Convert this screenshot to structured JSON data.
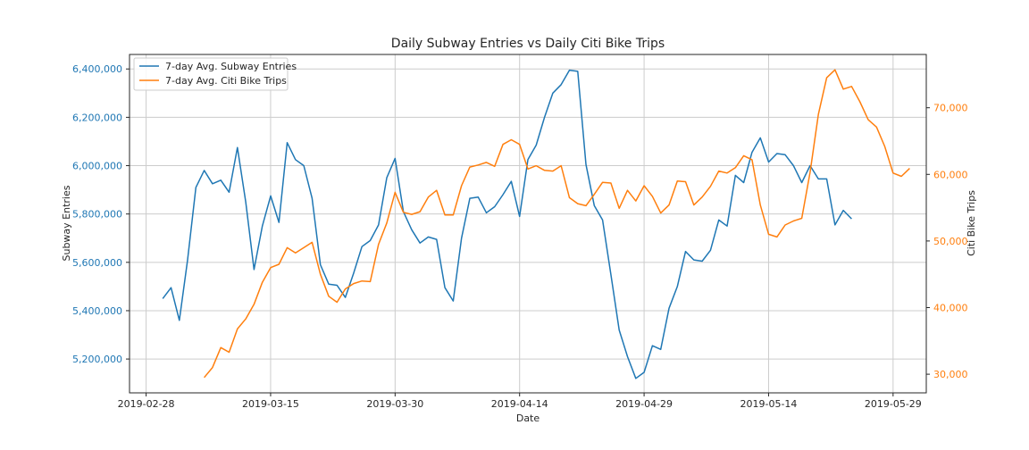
{
  "chart_data": {
    "type": "line",
    "title": "Daily Subway Entries vs Daily Citi Bike Trips",
    "xlabel": "Date",
    "ylabel_left": "Subway Entries",
    "ylabel_right": "Citi Bike Trips",
    "grid": true,
    "legend_position": "top-left",
    "x_start_date": "2019-02-28",
    "x_range_days": [
      -2,
      94
    ],
    "x_ticks": [
      {
        "day": 0,
        "label": "2019-02-28"
      },
      {
        "day": 15,
        "label": "2019-03-15"
      },
      {
        "day": 30,
        "label": "2019-03-30"
      },
      {
        "day": 45,
        "label": "2019-04-14"
      },
      {
        "day": 60,
        "label": "2019-04-29"
      },
      {
        "day": 75,
        "label": "2019-05-14"
      },
      {
        "day": 90,
        "label": "2019-05-29"
      }
    ],
    "y_left": {
      "range": [
        5060000,
        6460000
      ],
      "ticks": [
        {
          "value": 5200000,
          "label": "5,200,000"
        },
        {
          "value": 5400000,
          "label": "5,400,000"
        },
        {
          "value": 5600000,
          "label": "5,600,000"
        },
        {
          "value": 5800000,
          "label": "5,800,000"
        },
        {
          "value": 6000000,
          "label": "6,000,000"
        },
        {
          "value": 6200000,
          "label": "6,200,000"
        },
        {
          "value": 6400000,
          "label": "6,400,000"
        }
      ]
    },
    "y_right": {
      "range": [
        27200,
        78000
      ],
      "ticks": [
        {
          "value": 30000,
          "label": "30,000"
        },
        {
          "value": 40000,
          "label": "40,000"
        },
        {
          "value": 50000,
          "label": "50,000"
        },
        {
          "value": 60000,
          "label": "60,000"
        },
        {
          "value": 70000,
          "label": "70,000"
        }
      ]
    },
    "series": [
      {
        "name": "7-day Avg. Subway Entries",
        "axis": "left",
        "color": "#1f77b4",
        "start_day": 2,
        "values": [
          5450000,
          5495000,
          5360000,
          5610000,
          5910000,
          5980000,
          5925000,
          5940000,
          5890000,
          6075000,
          5850000,
          5570000,
          5750000,
          5875000,
          5765000,
          6095000,
          6025000,
          6000000,
          5865000,
          5590000,
          5510000,
          5505000,
          5455000,
          5555000,
          5665000,
          5690000,
          5755000,
          5950000,
          6030000,
          5810000,
          5735000,
          5680000,
          5705000,
          5695000,
          5495000,
          5440000,
          5700000,
          5865000,
          5870000,
          5805000,
          5830000,
          5880000,
          5935000,
          5790000,
          6025000,
          6085000,
          6200000,
          6300000,
          6335000,
          6395000,
          6390000,
          6005000,
          5835000,
          5775000,
          5550000,
          5320000,
          5210000,
          5120000,
          5145000,
          5255000,
          5240000,
          5410000,
          5500000,
          5645000,
          5610000,
          5605000,
          5650000,
          5775000,
          5750000,
          5960000,
          5930000,
          6055000,
          6115000,
          6015000,
          6050000,
          6045000,
          6000000,
          5930000,
          6000000,
          5945000,
          5945000,
          5755000,
          5815000,
          5780000
        ]
      },
      {
        "name": "7-day Avg. Citi Bike Trips",
        "axis": "right",
        "color": "#ff7f0e",
        "start_day": 7,
        "values": [
          29500,
          31000,
          34000,
          33300,
          36800,
          38300,
          40500,
          43800,
          46000,
          46500,
          49000,
          48200,
          49000,
          49800,
          45000,
          41700,
          40800,
          42800,
          43600,
          44000,
          43900,
          49500,
          52700,
          57300,
          54300,
          54000,
          54400,
          56600,
          57600,
          53900,
          53900,
          58300,
          61100,
          61400,
          61800,
          61200,
          64500,
          65200,
          64500,
          60800,
          61300,
          60600,
          60500,
          61300,
          56500,
          55600,
          55300,
          57000,
          58800,
          58700,
          54900,
          57600,
          56000,
          58300,
          56700,
          54200,
          55400,
          59000,
          58900,
          55400,
          56600,
          58200,
          60500,
          60200,
          61000,
          62800,
          62200,
          55400,
          51000,
          50600,
          52400,
          53000,
          53400,
          60300,
          69000,
          74500,
          75700,
          72800,
          73200,
          70900,
          68200,
          67100,
          64200,
          60200,
          59700,
          60900
        ]
      }
    ]
  }
}
